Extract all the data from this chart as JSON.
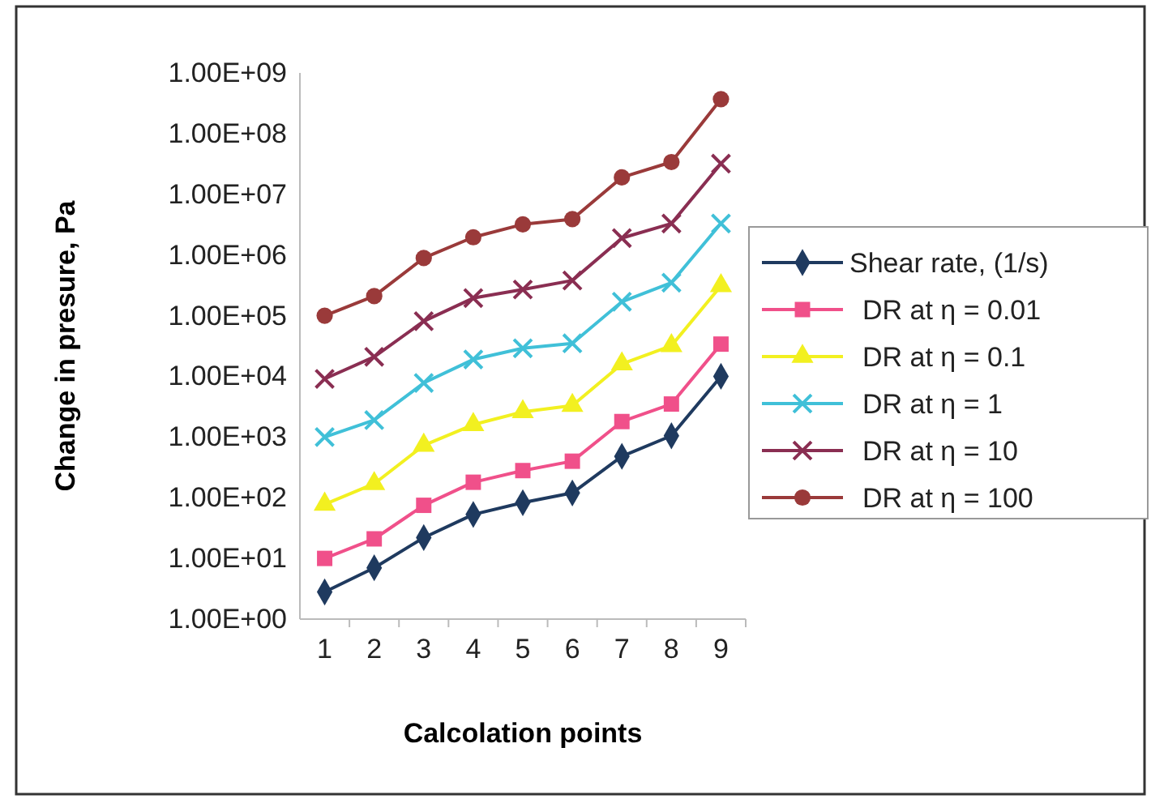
{
  "chart_data": {
    "type": "line",
    "xlabel": "Calcolation points",
    "ylabel": "Change in presure, Pa",
    "categories": [
      "1",
      "2",
      "3",
      "4",
      "5",
      "6",
      "7",
      "8",
      "9"
    ],
    "log": "y",
    "ylim": [
      1,
      1000000000
    ],
    "yticks": [
      {
        "value": 1,
        "label": "1.00E+00"
      },
      {
        "value": 10,
        "label": "1.00E+01"
      },
      {
        "value": 100,
        "label": "1.00E+02"
      },
      {
        "value": 1000,
        "label": "1.00E+03"
      },
      {
        "value": 10000,
        "label": "1.00E+04"
      },
      {
        "value": 100000,
        "label": "1.00E+05"
      },
      {
        "value": 1000000,
        "label": "1.00E+06"
      },
      {
        "value": 10000000,
        "label": "1.00E+07"
      },
      {
        "value": 100000000,
        "label": "1.00E+08"
      },
      {
        "value": 1000000000,
        "label": "1.00E+09"
      }
    ],
    "grid": false,
    "legend": "right",
    "line_style": "solid",
    "series": [
      {
        "name": "Shear rate, (1/s)",
        "color": "#1f3a5f",
        "marker": "diamond",
        "values": [
          2.8,
          7,
          22,
          53,
          83,
          120,
          480,
          1050,
          10000
        ]
      },
      {
        "name": "DR at η = 0.01",
        "color": "#f0508a",
        "marker": "square",
        "values": [
          10,
          21,
          75,
          180,
          280,
          400,
          1800,
          3500,
          34000
        ]
      },
      {
        "name": "DR at η = 0.1",
        "color": "#f2f020",
        "marker": "triangle",
        "values": [
          78,
          170,
          730,
          1600,
          2600,
          3300,
          16000,
          32000,
          310000
        ]
      },
      {
        "name": "DR at η = 1",
        "color": "#40c0d8",
        "marker": "cross",
        "values": [
          1000,
          1900,
          7800,
          19000,
          29000,
          35000,
          170000,
          350000,
          3300000
        ]
      },
      {
        "name": "DR at η = 10",
        "color": "#8a2e52",
        "marker": "cross",
        "values": [
          9100,
          21000,
          81000,
          195000,
          270000,
          380000,
          1900000,
          3300000,
          32000000
        ]
      },
      {
        "name": "DR at η = 100",
        "color": "#9a3a3a",
        "marker": "circle",
        "values": [
          100000,
          210000,
          890000,
          1960000,
          3200000,
          3900000,
          19000000,
          34000000,
          370000000
        ]
      }
    ]
  }
}
